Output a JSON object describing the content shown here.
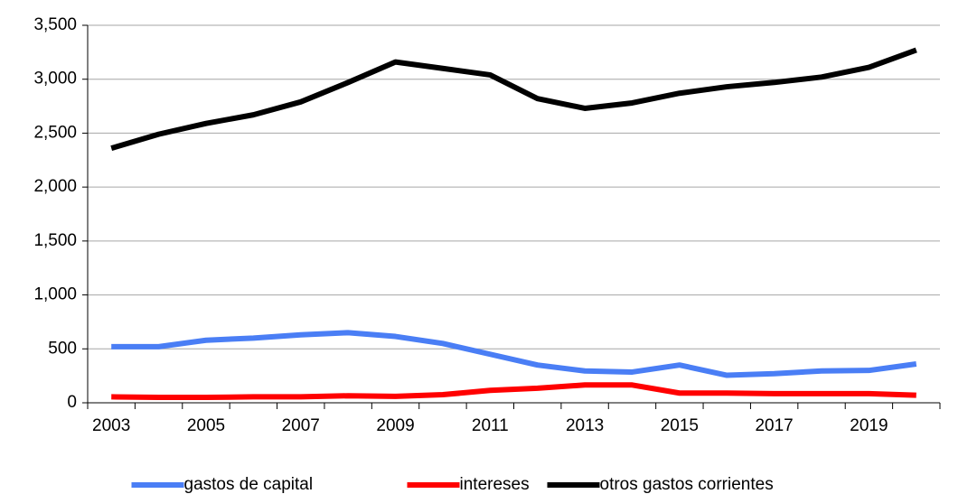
{
  "chart_data": {
    "type": "line",
    "categories": [
      "2003",
      null,
      "2005",
      null,
      "2007",
      null,
      "2009",
      null,
      "2011",
      null,
      "2013",
      null,
      "2015",
      null,
      "2017",
      null,
      "2019",
      null
    ],
    "series": [
      {
        "name": "gastos de capital",
        "color": "#4a7ef5",
        "values": [
          520,
          520,
          580,
          600,
          630,
          650,
          615,
          550,
          450,
          350,
          295,
          285,
          350,
          255,
          270,
          295,
          300,
          360
        ]
      },
      {
        "name": "intereses",
        "color": "#ff0000",
        "values": [
          55,
          50,
          50,
          55,
          55,
          65,
          60,
          75,
          115,
          135,
          165,
          165,
          90,
          90,
          85,
          85,
          85,
          70
        ]
      },
      {
        "name": "otros gastos corrientes",
        "color": "#000000",
        "values": [
          2360,
          2490,
          2590,
          2670,
          2790,
          2970,
          3160,
          3100,
          3040,
          2820,
          2730,
          2780,
          2870,
          2930,
          2970,
          3020,
          3110,
          3270
        ]
      }
    ],
    "ylim": [
      0,
      3500
    ],
    "yticks": [
      0,
      500,
      {
        "value": 1000,
        "label": "1,000"
      },
      {
        "value": 1500,
        "label": "1,500"
      },
      {
        "value": 2000,
        "label": "2,000"
      },
      {
        "value": 2500,
        "label": "2,500"
      },
      {
        "value": 3000,
        "label": "3,000"
      },
      {
        "value": 3500,
        "label": "3,500"
      }
    ],
    "grid": true,
    "legend": "bottom"
  }
}
